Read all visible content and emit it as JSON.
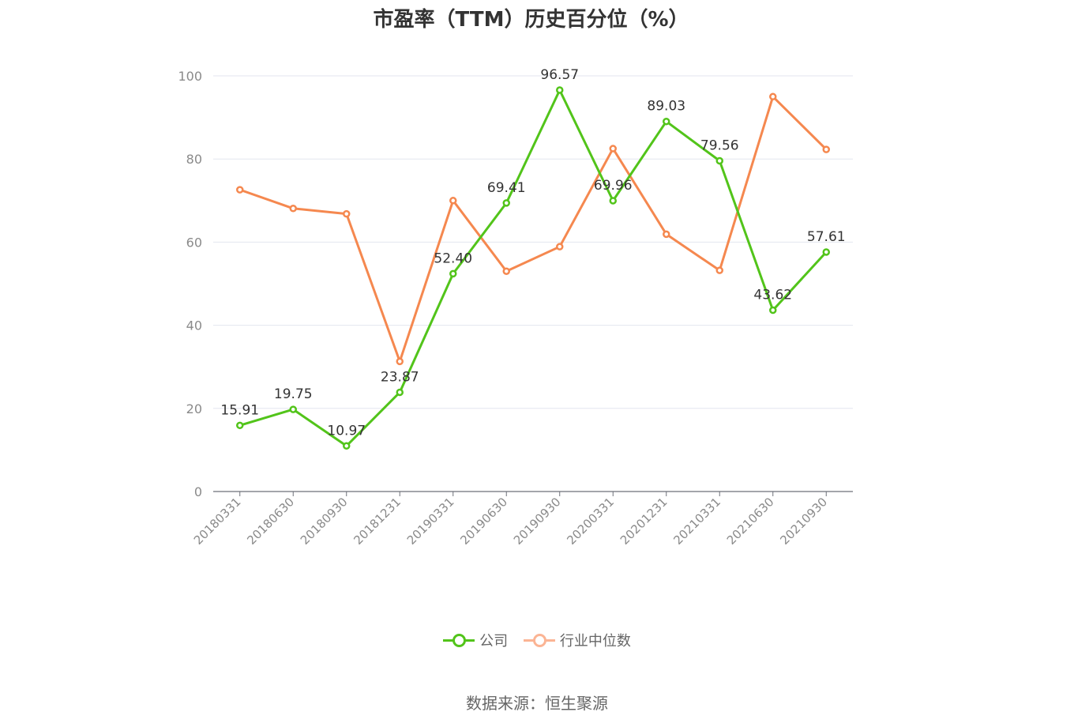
{
  "chart_data": {
    "type": "line",
    "title": "市盈率（TTM）历史百分位（%）",
    "categories": [
      "20180331",
      "20180630",
      "20180930",
      "20181231",
      "20190331",
      "20190630",
      "20190930",
      "20200331",
      "20201231",
      "20210331",
      "20210630",
      "20210930"
    ],
    "series": [
      {
        "name": "公司",
        "color": "#52c41a",
        "values": [
          15.91,
          19.75,
          10.97,
          23.87,
          52.4,
          69.41,
          96.57,
          69.96,
          89.03,
          79.56,
          43.62,
          57.61
        ],
        "labels_shown": true
      },
      {
        "name": "行业中位数",
        "color": "#f5884f",
        "values": [
          72.6,
          68.1,
          66.8,
          31.3,
          70.0,
          53.0,
          58.9,
          82.5,
          61.9,
          53.2,
          95.0,
          82.3
        ],
        "labels_shown": false
      }
    ],
    "ylim": [
      0,
      100
    ],
    "yticks": [
      0,
      20,
      40,
      60,
      80,
      100
    ],
    "grid": true,
    "legend": "bottom-center"
  },
  "legend": {
    "company_label": "公司",
    "industry_label": "行业中位数",
    "industry_color_faded": "#fbb494"
  },
  "source_text": "数据来源：恒生聚源"
}
